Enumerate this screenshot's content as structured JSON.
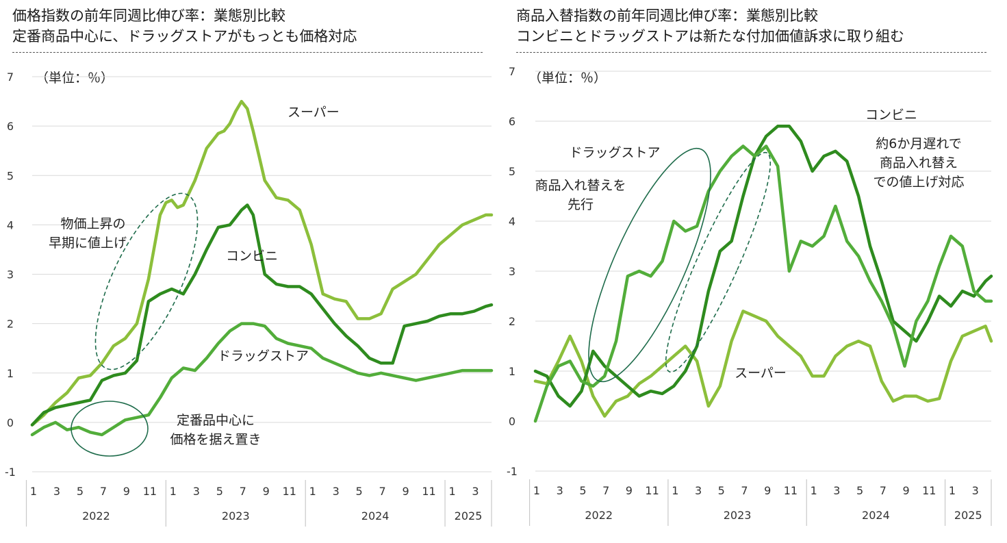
{
  "charts": [
    {
      "title_line1": "価格指数の前年同週比伸び率：業態別比較",
      "title_line2": "定番商品中心に、ドラッグストアがもっとも価格対応",
      "unit_label": "（単位：％）"
    },
    {
      "title_line1": "商品入替指数の前年同週比伸び率：業態別比較",
      "title_line2": "コンビニとドラッグストアは新たな付加価値訴求に取り組む",
      "unit_label": "（単位：％）"
    }
  ],
  "colors": {
    "super": "#8cbf3b",
    "convenience": "#2e8b1e",
    "drugstore": "#52ad3a",
    "annotation": "#1d6b4a",
    "grid": "#d9d9d9",
    "axis_text": "#333333"
  },
  "chart_data": [
    {
      "type": "line",
      "title": "価格指数の前年同週比伸び率：業態別比較",
      "subtitle": "定番商品中心に、ドラッグストアがもっとも価格対応",
      "ylabel": "（単位：％）",
      "ylim": [
        -1,
        7
      ],
      "yticks": [
        -1,
        0,
        1,
        2,
        3,
        4,
        5,
        6,
        7
      ],
      "x_unit": "month index (0 = Jan 2022)",
      "xlim": [
        0,
        39.5
      ],
      "month_ticks": [
        "1",
        "3",
        "5",
        "7",
        "9",
        "11",
        "1",
        "3",
        "5",
        "7",
        "9",
        "11",
        "1",
        "3",
        "5",
        "7",
        "9",
        "11",
        "1",
        "3"
      ],
      "years": [
        "2022",
        "2023",
        "2024",
        "2025"
      ],
      "series": [
        {
          "name": "スーパー",
          "key": "super",
          "x": [
            0,
            1,
            2,
            3,
            4,
            5,
            6,
            7,
            8,
            9,
            10,
            11,
            11.5,
            12,
            12.5,
            13,
            14,
            15,
            16,
            16.5,
            17,
            17.5,
            18,
            18.5,
            19,
            19.5,
            20,
            21,
            22,
            23,
            24,
            25,
            26,
            27,
            28,
            29,
            30,
            31,
            32,
            33,
            34,
            35,
            36,
            37,
            38,
            39,
            39.5
          ],
          "values": [
            -0.05,
            0.15,
            0.4,
            0.6,
            0.9,
            0.95,
            1.2,
            1.55,
            1.7,
            2.0,
            2.9,
            4.2,
            4.45,
            4.5,
            4.35,
            4.4,
            4.9,
            5.55,
            5.85,
            5.9,
            6.05,
            6.3,
            6.5,
            6.35,
            5.9,
            5.4,
            4.9,
            4.55,
            4.5,
            4.3,
            3.6,
            2.6,
            2.5,
            2.45,
            2.1,
            2.1,
            2.2,
            2.7,
            2.85,
            3.0,
            3.3,
            3.6,
            3.8,
            4.0,
            4.1,
            4.2,
            4.2
          ],
          "label": "スーパー"
        },
        {
          "name": "コンビニ",
          "key": "convenience",
          "x": [
            0,
            1,
            2,
            3,
            4,
            5,
            6,
            7,
            8,
            9,
            10,
            11,
            12,
            13,
            14,
            15,
            16,
            17,
            17.5,
            18,
            18.5,
            19,
            20,
            21,
            22,
            23,
            24,
            25,
            26,
            27,
            28,
            29,
            30,
            31,
            32,
            33,
            34,
            35,
            36,
            37,
            38,
            39,
            39.5
          ],
          "values": [
            -0.05,
            0.2,
            0.3,
            0.35,
            0.4,
            0.45,
            0.85,
            0.95,
            1.0,
            1.25,
            2.45,
            2.6,
            2.7,
            2.6,
            3.0,
            3.5,
            3.95,
            4.0,
            4.15,
            4.3,
            4.4,
            4.2,
            3.0,
            2.8,
            2.75,
            2.75,
            2.6,
            2.3,
            2.0,
            1.75,
            1.55,
            1.3,
            1.2,
            1.2,
            1.95,
            2.0,
            2.05,
            2.15,
            2.2,
            2.2,
            2.25,
            2.35,
            2.38
          ],
          "label": "コンビニ"
        },
        {
          "name": "ドラッグストア",
          "key": "drugstore",
          "x": [
            0,
            1,
            2,
            3,
            4,
            5,
            6,
            7,
            8,
            9,
            10,
            11,
            12,
            13,
            14,
            15,
            16,
            17,
            18,
            19,
            20,
            21,
            22,
            23,
            24,
            25,
            26,
            27,
            28,
            29,
            30,
            31,
            32,
            33,
            34,
            35,
            36,
            37,
            38,
            39,
            39.5
          ],
          "values": [
            -0.25,
            -0.1,
            0.0,
            -0.15,
            -0.1,
            -0.2,
            -0.25,
            -0.1,
            0.05,
            0.1,
            0.15,
            0.5,
            0.9,
            1.1,
            1.05,
            1.3,
            1.6,
            1.85,
            2.0,
            2.0,
            1.95,
            1.7,
            1.6,
            1.55,
            1.5,
            1.3,
            1.2,
            1.1,
            1.0,
            0.95,
            1.0,
            0.95,
            0.9,
            0.85,
            0.9,
            0.95,
            1.0,
            1.05,
            1.05,
            1.05,
            1.05
          ],
          "label": "ドラッグストア"
        }
      ],
      "annotations": [
        "物価上昇の",
        "早期に値上げ",
        "定番品中心に",
        "価格を据え置き"
      ]
    },
    {
      "type": "line",
      "title": "商品入替指数の前年同週比伸び率：業態別比較",
      "subtitle": "コンビニとドラッグストアは新たな付加価値訴求に取り組む",
      "ylabel": "（単位：％）",
      "ylim": [
        -1,
        7
      ],
      "yticks": [
        -1,
        0,
        1,
        2,
        3,
        4,
        5,
        6,
        7
      ],
      "x_unit": "month index (0 = Jan 2022)",
      "xlim": [
        0,
        39.5
      ],
      "month_ticks": [
        "1",
        "3",
        "5",
        "7",
        "9",
        "11",
        "1",
        "3",
        "5",
        "7",
        "9",
        "11",
        "1",
        "3",
        "5",
        "7",
        "9",
        "11",
        "1",
        "3"
      ],
      "years": [
        "2022",
        "2023",
        "2024",
        "2025"
      ],
      "series": [
        {
          "name": "スーパー",
          "key": "super",
          "x": [
            0,
            1,
            2,
            3,
            4,
            5,
            6,
            7,
            8,
            9,
            10,
            11,
            12,
            13,
            14,
            15,
            16,
            17,
            18,
            19,
            20,
            21,
            22,
            23,
            24,
            25,
            26,
            27,
            28,
            29,
            30,
            31,
            32,
            33,
            34,
            35,
            36,
            37,
            38,
            39,
            39.5
          ],
          "values": [
            0.8,
            0.75,
            1.2,
            1.7,
            1.2,
            0.5,
            0.1,
            0.4,
            0.5,
            0.75,
            0.9,
            1.1,
            1.3,
            1.5,
            1.2,
            0.3,
            0.7,
            1.6,
            2.2,
            2.1,
            2.0,
            1.7,
            1.5,
            1.3,
            0.9,
            0.9,
            1.3,
            1.5,
            1.6,
            1.5,
            0.8,
            0.4,
            0.5,
            0.5,
            0.4,
            0.45,
            1.2,
            1.7,
            1.8,
            1.9,
            1.6
          ],
          "label": "スーパー"
        },
        {
          "name": "コンビニ",
          "key": "convenience",
          "x": [
            0,
            1,
            2,
            3,
            4,
            5,
            6,
            7,
            8,
            9,
            10,
            11,
            12,
            13,
            14,
            15,
            16,
            17,
            18,
            19,
            20,
            21,
            22,
            23,
            24,
            25,
            26,
            27,
            28,
            29,
            30,
            31,
            32,
            33,
            34,
            35,
            36,
            37,
            38,
            39,
            39.5
          ],
          "values": [
            1.0,
            0.9,
            0.5,
            0.3,
            0.6,
            1.4,
            1.1,
            0.9,
            0.7,
            0.5,
            0.6,
            0.55,
            0.7,
            1.0,
            1.5,
            2.6,
            3.4,
            3.6,
            4.5,
            5.3,
            5.7,
            5.9,
            5.9,
            5.6,
            5.0,
            5.3,
            5.4,
            5.2,
            4.5,
            3.5,
            2.8,
            2.0,
            1.8,
            1.6,
            2.0,
            2.5,
            2.3,
            2.6,
            2.5,
            2.8,
            2.9
          ],
          "label": "コンビニ"
        },
        {
          "name": "ドラッグストア",
          "key": "drugstore",
          "x": [
            0,
            1,
            2,
            3,
            4,
            5,
            6,
            7,
            8,
            9,
            10,
            11,
            12,
            13,
            14,
            15,
            16,
            17,
            18,
            19,
            20,
            21,
            22,
            23,
            24,
            25,
            26,
            27,
            28,
            29,
            30,
            31,
            32,
            33,
            34,
            35,
            36,
            37,
            38,
            39,
            39.5
          ],
          "values": [
            0.0,
            0.7,
            1.1,
            1.2,
            0.8,
            0.7,
            0.9,
            1.6,
            2.9,
            3.0,
            2.9,
            3.2,
            4.0,
            3.8,
            3.9,
            4.6,
            5.0,
            5.3,
            5.5,
            5.3,
            5.5,
            5.1,
            3.0,
            3.6,
            3.5,
            3.7,
            4.3,
            3.6,
            3.3,
            2.8,
            2.4,
            1.9,
            1.1,
            2.0,
            2.4,
            3.1,
            3.7,
            3.5,
            2.6,
            2.4,
            2.4
          ],
          "label": "ドラッグストア"
        }
      ],
      "annotations": [
        "ドラッグストア",
        "商品入れ替えを",
        "先行",
        "コンビニ",
        "約6か月遅れで",
        "商品入れ替え",
        "での値上げ対応",
        "スーパー"
      ]
    }
  ]
}
